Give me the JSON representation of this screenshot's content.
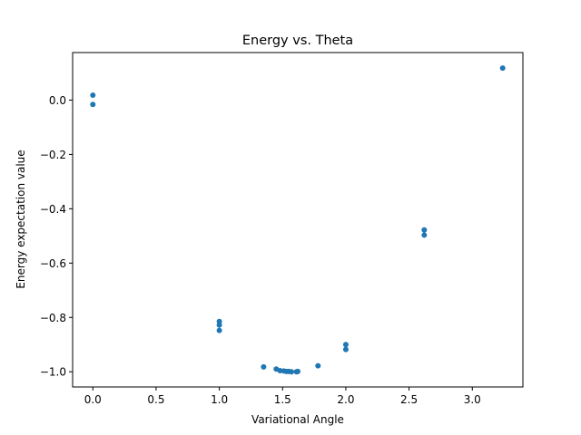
{
  "chart_data": {
    "type": "scatter",
    "title": "Energy vs. Theta",
    "xlabel": "Variational Angle",
    "ylabel": "Energy expectation value",
    "xlim": [
      -0.16,
      3.4
    ],
    "ylim": [
      -1.056,
      0.175
    ],
    "xticks": [
      0.0,
      0.5,
      1.0,
      1.5,
      2.0,
      2.5,
      3.0
    ],
    "xtick_labels": [
      "0.0",
      "0.5",
      "1.0",
      "1.5",
      "2.0",
      "2.5",
      "3.0"
    ],
    "yticks": [
      0.0,
      -0.2,
      -0.4,
      -0.6,
      -0.8,
      -1.0
    ],
    "ytick_labels": [
      "0.0",
      "−0.2",
      "−0.4",
      "−0.6",
      "−0.8",
      "−1.0"
    ],
    "grid": false,
    "color": "#1f77b4",
    "points": [
      {
        "x": 0.0,
        "y": 0.018
      },
      {
        "x": 0.0,
        "y": -0.016
      },
      {
        "x": 1.0,
        "y": -0.815
      },
      {
        "x": 1.0,
        "y": -0.828
      },
      {
        "x": 1.0,
        "y": -0.848
      },
      {
        "x": 1.35,
        "y": -0.982
      },
      {
        "x": 1.45,
        "y": -0.99
      },
      {
        "x": 1.48,
        "y": -0.996
      },
      {
        "x": 1.51,
        "y": -0.997
      },
      {
        "x": 1.53,
        "y": -0.999
      },
      {
        "x": 1.55,
        "y": -0.999
      },
      {
        "x": 1.57,
        "y": -1.0
      },
      {
        "x": 1.61,
        "y": -1.0
      },
      {
        "x": 1.62,
        "y": -0.999
      },
      {
        "x": 1.78,
        "y": -0.978
      },
      {
        "x": 2.0,
        "y": -0.9
      },
      {
        "x": 2.0,
        "y": -0.918
      },
      {
        "x": 2.62,
        "y": -0.478
      },
      {
        "x": 2.62,
        "y": -0.497
      },
      {
        "x": 3.24,
        "y": 0.118
      }
    ]
  }
}
